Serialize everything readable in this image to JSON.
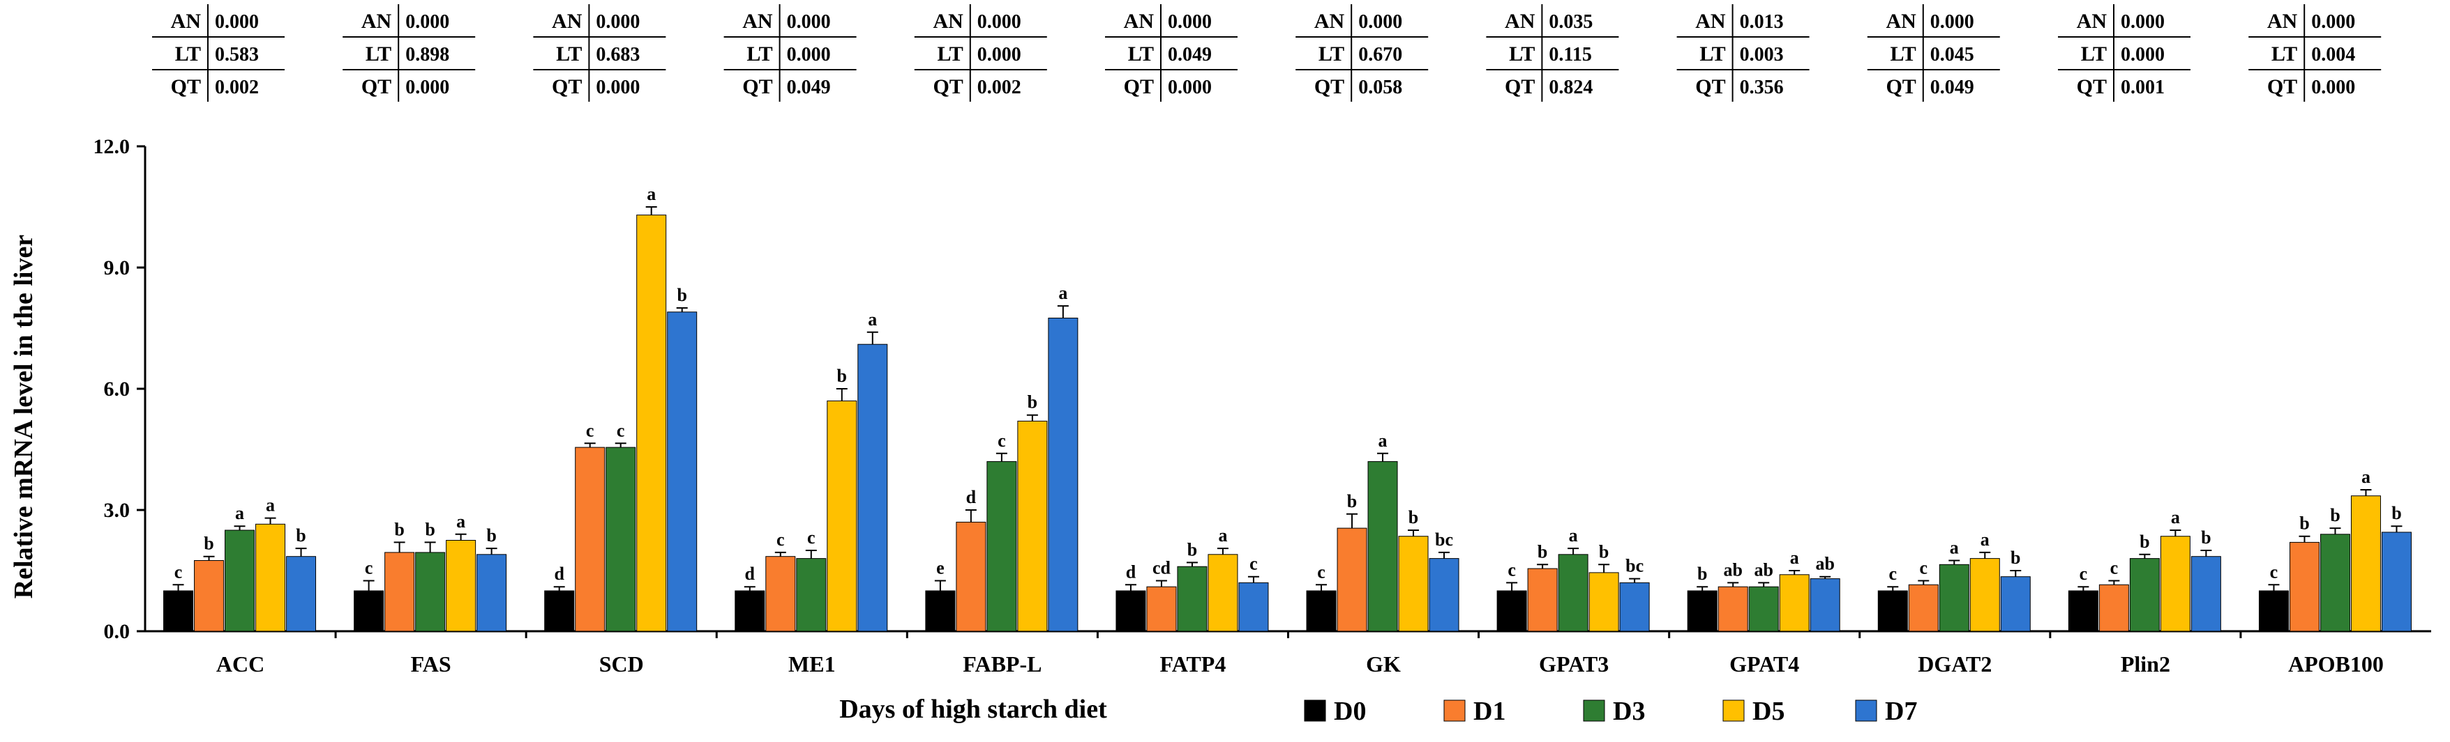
{
  "chart_data": {
    "type": "bar",
    "ylabel": "Relative mRNA level in the liver",
    "xlabel": "Days of high starch diet",
    "ylim": [
      0,
      12
    ],
    "yticks": [
      0,
      3,
      6,
      9,
      12
    ],
    "ytick_labels": [
      "0.0",
      "3.0",
      "6.0",
      "9.0",
      "12.0"
    ],
    "legend_position": "bottom-center",
    "categories": [
      "ACC",
      "FAS",
      "SCD",
      "ME1",
      "FABP-L",
      "FATP4",
      "GK",
      "GPAT3",
      "GPAT4",
      "DGAT2",
      "Plin2",
      "APOB100"
    ],
    "series": [
      {
        "name": "D0",
        "color": "#000000",
        "values": [
          1.0,
          1.0,
          1.0,
          1.0,
          1.0,
          1.0,
          1.0,
          1.0,
          1.0,
          1.0,
          1.0,
          1.0
        ],
        "errors": [
          0.15,
          0.25,
          0.1,
          0.1,
          0.25,
          0.15,
          0.15,
          0.2,
          0.1,
          0.1,
          0.1,
          0.15
        ],
        "letters": [
          "c",
          "c",
          "d",
          "d",
          "e",
          "d",
          "c",
          "c",
          "b",
          "c",
          "c",
          "c"
        ]
      },
      {
        "name": "D1",
        "color": "#F97D2E",
        "values": [
          1.75,
          1.95,
          4.55,
          1.85,
          2.7,
          1.1,
          2.55,
          1.55,
          1.1,
          1.15,
          1.15,
          2.2
        ],
        "errors": [
          0.1,
          0.25,
          0.1,
          0.1,
          0.3,
          0.15,
          0.35,
          0.1,
          0.1,
          0.1,
          0.1,
          0.15
        ],
        "letters": [
          "b",
          "b",
          "c",
          "c",
          "d",
          "cd",
          "b",
          "b",
          "ab",
          "c",
          "c",
          "b"
        ]
      },
      {
        "name": "D3",
        "color": "#2E7D32",
        "values": [
          2.5,
          1.95,
          4.55,
          1.8,
          4.2,
          1.6,
          4.2,
          1.9,
          1.1,
          1.65,
          1.8,
          2.4
        ],
        "errors": [
          0.1,
          0.25,
          0.1,
          0.2,
          0.2,
          0.1,
          0.2,
          0.15,
          0.1,
          0.1,
          0.1,
          0.15
        ],
        "letters": [
          "a",
          "b",
          "c",
          "c",
          "c",
          "b",
          "a",
          "a",
          "ab",
          "a",
          "b",
          "b"
        ]
      },
      {
        "name": "D5",
        "color": "#FFC000",
        "values": [
          2.65,
          2.25,
          10.3,
          5.7,
          5.2,
          1.9,
          2.35,
          1.45,
          1.4,
          1.8,
          2.35,
          3.35
        ],
        "errors": [
          0.15,
          0.15,
          0.2,
          0.3,
          0.15,
          0.15,
          0.15,
          0.2,
          0.1,
          0.15,
          0.15,
          0.15
        ],
        "letters": [
          "a",
          "a",
          "a",
          "b",
          "b",
          "a",
          "b",
          "b",
          "a",
          "a",
          "a",
          "a"
        ]
      },
      {
        "name": "D7",
        "color": "#2E75D0",
        "values": [
          1.85,
          1.9,
          7.9,
          7.1,
          7.75,
          1.2,
          1.8,
          1.2,
          1.3,
          1.35,
          1.85,
          2.45
        ],
        "errors": [
          0.2,
          0.15,
          0.1,
          0.3,
          0.3,
          0.15,
          0.15,
          0.1,
          0.05,
          0.15,
          0.15,
          0.15
        ],
        "letters": [
          "b",
          "b",
          "b",
          "a",
          "a",
          "c",
          "bc",
          "bc",
          "ab",
          "b",
          "b",
          "b"
        ]
      }
    ],
    "stats_tables": [
      {
        "AN": "0.000",
        "LT": "0.583",
        "QT": "0.002"
      },
      {
        "AN": "0.000",
        "LT": "0.898",
        "QT": "0.000"
      },
      {
        "AN": "0.000",
        "LT": "0.683",
        "QT": "0.000"
      },
      {
        "AN": "0.000",
        "LT": "0.000",
        "QT": "0.049"
      },
      {
        "AN": "0.000",
        "LT": "0.000",
        "QT": "0.002"
      },
      {
        "AN": "0.000",
        "LT": "0.049",
        "QT": "0.000"
      },
      {
        "AN": "0.000",
        "LT": "0.670",
        "QT": "0.058"
      },
      {
        "AN": "0.035",
        "LT": "0.115",
        "QT": "0.824"
      },
      {
        "AN": "0.013",
        "LT": "0.003",
        "QT": "0.356"
      },
      {
        "AN": "0.000",
        "LT": "0.045",
        "QT": "0.049"
      },
      {
        "AN": "0.000",
        "LT": "0.000",
        "QT": "0.001"
      },
      {
        "AN": "0.000",
        "LT": "0.004",
        "QT": "0.000"
      }
    ],
    "stats_row_labels": [
      "AN",
      "LT",
      "QT"
    ]
  }
}
